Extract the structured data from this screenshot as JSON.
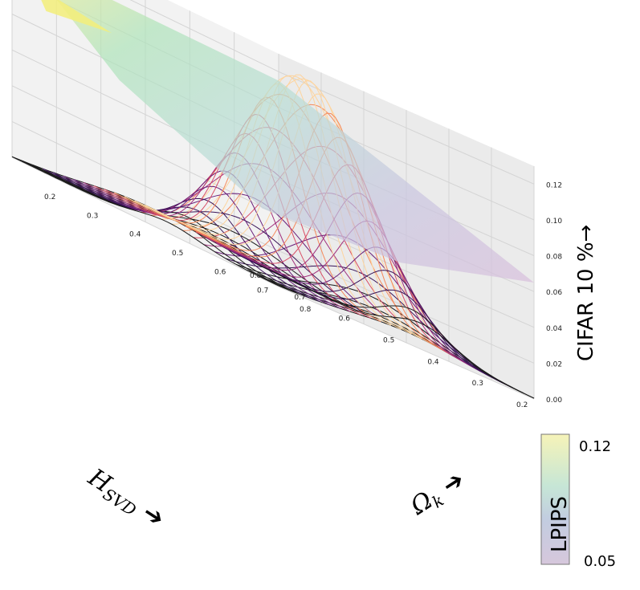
{
  "chart_data": {
    "type": "surface3d",
    "x_axis": {
      "label": "H",
      "label_subscript": "SVD",
      "arrow": "➔",
      "ticks": [
        "0.2",
        "0.3",
        "0.4",
        "0.5",
        "0.6",
        "0.7",
        "0.8"
      ],
      "range": [
        0.2,
        0.8
      ]
    },
    "y_axis": {
      "label": "Ω",
      "label_subscript": "k",
      "arrow": "➔",
      "ticks": [
        "0.2",
        "0.3",
        "0.4",
        "0.5",
        "0.6",
        "0.7",
        "0.8"
      ],
      "range": [
        0.2,
        0.8
      ]
    },
    "z_axis": {
      "label": "CIFAR 10 %→",
      "ticks": [
        "0.00",
        "0.02",
        "0.04",
        "0.06",
        "0.08",
        "0.10",
        "0.12"
      ],
      "range": [
        0,
        0.13
      ]
    },
    "wireframe": {
      "description_free": true,
      "peak_value": 0.115,
      "peak_x": 0.45,
      "peak_y": 0.52,
      "width_x": 0.07,
      "width_y": 0.13,
      "grid_n": 25
    },
    "surface": {
      "colorbar_label": "LPIPS",
      "colorbar_min_label": "0.05",
      "colorbar_max_label": "0.12",
      "colormap": [
        "#440154",
        "#3b528b",
        "#21918c",
        "#5ec962",
        "#fde725"
      ]
    },
    "grid": true
  }
}
